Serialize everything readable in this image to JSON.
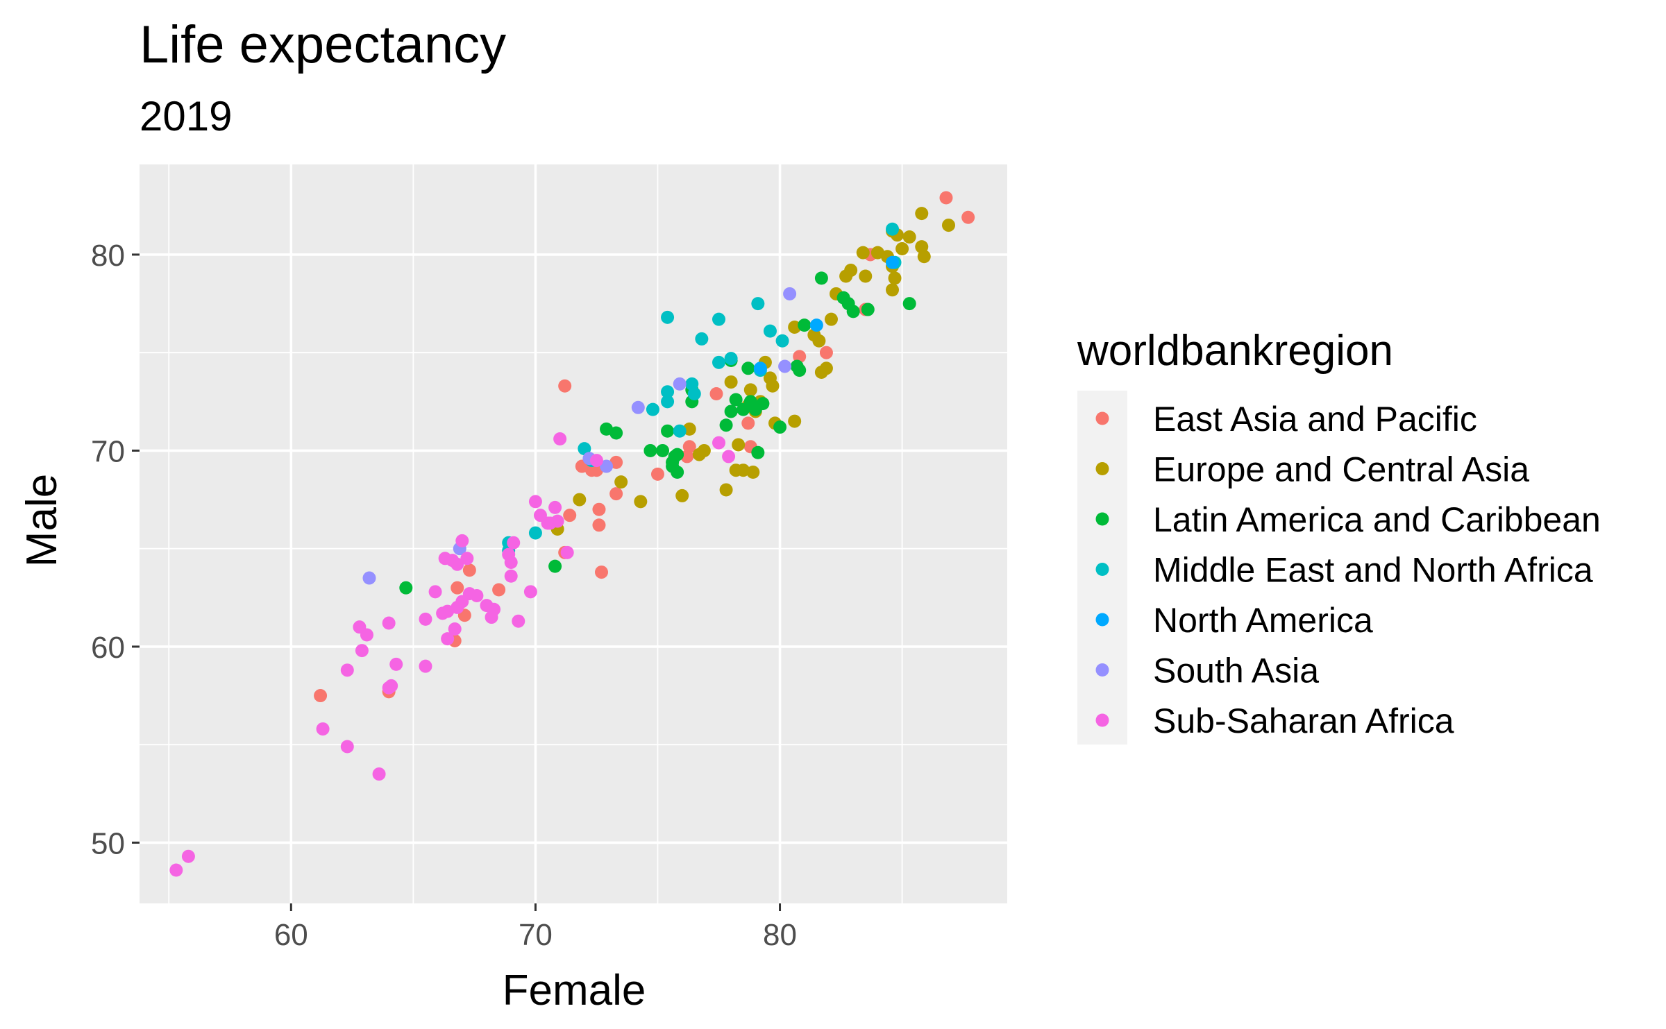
{
  "chart_data": {
    "type": "scatter",
    "title": "Life expectancy",
    "subtitle": "2019",
    "xlabel": "Female",
    "ylabel": "Male",
    "xlim": [
      53.8,
      89.3
    ],
    "ylim": [
      46.9,
      84.6
    ],
    "x_ticks": [
      60,
      70,
      80
    ],
    "y_ticks": [
      50,
      60,
      70,
      80
    ],
    "grid": true,
    "legend_position": "right",
    "legend_title": "worldbankregion",
    "series": [
      {
        "name": "East Asia and Pacific",
        "color": "#F8766D",
        "points": [
          [
            86.8,
            82.9
          ],
          [
            87.7,
            81.9
          ],
          [
            83.7,
            80.0
          ],
          [
            83.5,
            77.2
          ],
          [
            81.9,
            75.0
          ],
          [
            80.8,
            74.8
          ],
          [
            77.4,
            72.9
          ],
          [
            78.7,
            71.4
          ],
          [
            78.8,
            70.2
          ],
          [
            76.3,
            70.2
          ],
          [
            76.2,
            69.7
          ],
          [
            71.2,
            73.3
          ],
          [
            71.9,
            69.2
          ],
          [
            72.3,
            69.0
          ],
          [
            72.5,
            69.0
          ],
          [
            73.3,
            69.4
          ],
          [
            75.0,
            68.8
          ],
          [
            73.3,
            67.8
          ],
          [
            72.6,
            67.0
          ],
          [
            71.4,
            66.7
          ],
          [
            72.6,
            66.2
          ],
          [
            71.2,
            64.8
          ],
          [
            72.7,
            63.8
          ],
          [
            66.8,
            63.0
          ],
          [
            67.3,
            63.9
          ],
          [
            68.5,
            62.9
          ],
          [
            67.1,
            61.6
          ],
          [
            66.7,
            60.3
          ],
          [
            61.2,
            57.5
          ],
          [
            64.0,
            57.7
          ]
        ]
      },
      {
        "name": "Europe and Central Asia",
        "color": "#B79F00",
        "points": [
          [
            85.8,
            82.1
          ],
          [
            84.6,
            81.2
          ],
          [
            84.8,
            81.0
          ],
          [
            85.3,
            80.9
          ],
          [
            84.0,
            80.1
          ],
          [
            85.0,
            80.3
          ],
          [
            85.8,
            80.4
          ],
          [
            86.9,
            81.5
          ],
          [
            85.9,
            79.9
          ],
          [
            83.4,
            80.1
          ],
          [
            84.6,
            79.4
          ],
          [
            84.4,
            79.9
          ],
          [
            84.7,
            78.8
          ],
          [
            84.6,
            78.2
          ],
          [
            83.5,
            78.9
          ],
          [
            82.9,
            79.2
          ],
          [
            82.7,
            78.9
          ],
          [
            82.3,
            78.0
          ],
          [
            82.1,
            76.7
          ],
          [
            81.4,
            75.9
          ],
          [
            81.6,
            75.6
          ],
          [
            80.6,
            76.3
          ],
          [
            81.9,
            74.2
          ],
          [
            81.7,
            74.0
          ],
          [
            79.4,
            74.5
          ],
          [
            79.6,
            73.7
          ],
          [
            79.7,
            73.3
          ],
          [
            78.8,
            73.1
          ],
          [
            78.0,
            73.5
          ],
          [
            78.7,
            72.3
          ],
          [
            79.0,
            72.0
          ],
          [
            79.2,
            72.5
          ],
          [
            79.8,
            71.4
          ],
          [
            80.6,
            71.5
          ],
          [
            78.3,
            70.3
          ],
          [
            76.3,
            71.1
          ],
          [
            76.9,
            70.0
          ],
          [
            76.7,
            69.8
          ],
          [
            78.2,
            69.0
          ],
          [
            78.5,
            69.0
          ],
          [
            78.9,
            68.9
          ],
          [
            77.8,
            68.0
          ],
          [
            76.0,
            67.7
          ],
          [
            74.3,
            67.4
          ],
          [
            73.5,
            68.4
          ],
          [
            71.8,
            67.5
          ],
          [
            70.9,
            66.0
          ]
        ]
      },
      {
        "name": "Latin America and Caribbean",
        "color": "#00BA38",
        "points": [
          [
            85.3,
            77.5
          ],
          [
            83.6,
            77.2
          ],
          [
            83.0,
            77.1
          ],
          [
            82.6,
            77.8
          ],
          [
            82.8,
            77.5
          ],
          [
            81.7,
            78.8
          ],
          [
            81.0,
            76.4
          ],
          [
            80.8,
            74.1
          ],
          [
            80.7,
            74.3
          ],
          [
            78.0,
            74.6
          ],
          [
            78.7,
            74.2
          ],
          [
            79.3,
            72.4
          ],
          [
            78.8,
            72.5
          ],
          [
            78.2,
            72.6
          ],
          [
            78.5,
            72.1
          ],
          [
            79.0,
            72.1
          ],
          [
            78.0,
            72.0
          ],
          [
            77.8,
            71.3
          ],
          [
            76.4,
            72.5
          ],
          [
            75.4,
            71.0
          ],
          [
            76.4,
            73.1
          ],
          [
            74.7,
            70.0
          ],
          [
            75.2,
            70.0
          ],
          [
            75.7,
            69.7
          ],
          [
            75.8,
            69.8
          ],
          [
            75.6,
            69.4
          ],
          [
            75.6,
            69.2
          ],
          [
            75.8,
            68.9
          ],
          [
            79.1,
            69.9
          ],
          [
            80.0,
            71.2
          ],
          [
            72.9,
            71.1
          ],
          [
            73.3,
            70.9
          ],
          [
            70.8,
            64.1
          ],
          [
            64.7,
            63.0
          ]
        ]
      },
      {
        "name": "Middle East and North Africa",
        "color": "#00BFC4",
        "points": [
          [
            84.6,
            81.3
          ],
          [
            84.7,
            79.6
          ],
          [
            79.1,
            77.5
          ],
          [
            77.5,
            76.7
          ],
          [
            75.4,
            76.8
          ],
          [
            76.8,
            75.7
          ],
          [
            79.6,
            76.1
          ],
          [
            80.1,
            75.6
          ],
          [
            79.2,
            74.1
          ],
          [
            77.5,
            74.5
          ],
          [
            78.0,
            74.7
          ],
          [
            75.4,
            73.0
          ],
          [
            76.4,
            73.4
          ],
          [
            76.5,
            72.9
          ],
          [
            75.4,
            72.5
          ],
          [
            74.8,
            72.1
          ],
          [
            75.9,
            71.0
          ],
          [
            72.0,
            70.1
          ],
          [
            72.3,
            69.5
          ],
          [
            70.0,
            65.8
          ],
          [
            68.9,
            65.3
          ],
          [
            68.9,
            64.9
          ]
        ]
      },
      {
        "name": "North America",
        "color": "#00A9FF",
        "points": [
          [
            84.6,
            79.6
          ],
          [
            81.5,
            76.4
          ],
          [
            79.2,
            74.2
          ]
        ]
      },
      {
        "name": "South Asia",
        "color": "#9590FF",
        "points": [
          [
            80.4,
            78.0
          ],
          [
            80.2,
            74.3
          ],
          [
            75.9,
            73.4
          ],
          [
            74.2,
            72.2
          ],
          [
            72.2,
            69.6
          ],
          [
            72.9,
            69.2
          ],
          [
            66.9,
            65.0
          ],
          [
            63.2,
            63.5
          ]
        ]
      },
      {
        "name": "Sub-Saharan Africa",
        "color": "#F564E3",
        "points": [
          [
            71.0,
            70.6
          ],
          [
            77.5,
            70.4
          ],
          [
            77.9,
            69.7
          ],
          [
            72.5,
            69.5
          ],
          [
            70.0,
            67.4
          ],
          [
            70.8,
            67.1
          ],
          [
            70.2,
            66.7
          ],
          [
            70.9,
            66.4
          ],
          [
            70.6,
            66.3
          ],
          [
            70.5,
            66.3
          ],
          [
            71.3,
            64.8
          ],
          [
            67.0,
            65.4
          ],
          [
            66.8,
            64.2
          ],
          [
            67.2,
            64.5
          ],
          [
            66.3,
            64.5
          ],
          [
            66.6,
            64.4
          ],
          [
            69.1,
            65.3
          ],
          [
            68.9,
            64.7
          ],
          [
            69.0,
            64.3
          ],
          [
            69.0,
            63.6
          ],
          [
            69.8,
            62.8
          ],
          [
            65.9,
            62.8
          ],
          [
            67.3,
            62.7
          ],
          [
            67.6,
            62.6
          ],
          [
            67.0,
            62.3
          ],
          [
            66.8,
            62.0
          ],
          [
            68.0,
            62.1
          ],
          [
            68.3,
            61.9
          ],
          [
            68.2,
            61.5
          ],
          [
            66.2,
            61.7
          ],
          [
            66.4,
            61.8
          ],
          [
            69.3,
            61.3
          ],
          [
            65.5,
            61.4
          ],
          [
            66.7,
            60.9
          ],
          [
            66.4,
            60.4
          ],
          [
            62.8,
            61.0
          ],
          [
            63.1,
            60.6
          ],
          [
            64.0,
            61.2
          ],
          [
            62.9,
            59.8
          ],
          [
            64.3,
            59.1
          ],
          [
            65.5,
            59.0
          ],
          [
            62.3,
            58.8
          ],
          [
            64.1,
            58.0
          ],
          [
            64.0,
            57.9
          ],
          [
            61.3,
            55.8
          ],
          [
            62.3,
            54.9
          ],
          [
            63.6,
            53.5
          ],
          [
            55.8,
            49.3
          ],
          [
            55.3,
            48.6
          ]
        ]
      }
    ]
  }
}
